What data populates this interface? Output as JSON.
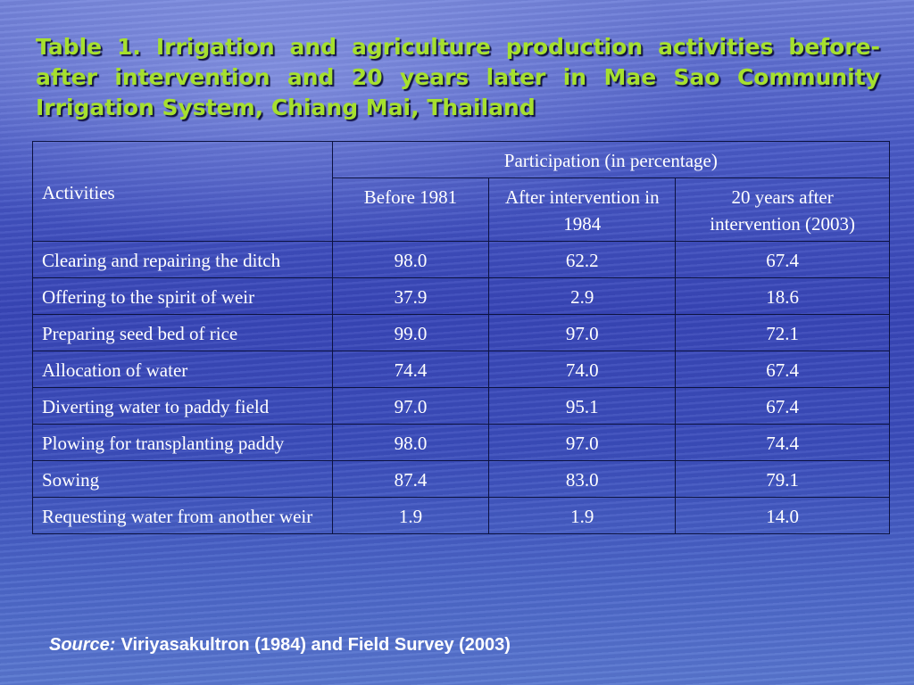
{
  "title": "Table 1. Irrigation and agriculture production activities before-after intervention and 20 years later in Mae Sao Community Irrigation System, Chiang Mai, Thailand",
  "table": {
    "header_activities": "Activities",
    "header_group": "Participation (in percentage)",
    "columns": [
      "Before 1981",
      "After intervention in 1984",
      "20 years after intervention (2003)"
    ],
    "rows": [
      {
        "activity": "Clearing and repairing the ditch",
        "before": "98.0",
        "after": "62.2",
        "twenty": "67.4"
      },
      {
        "activity": "Offering to the spirit of weir",
        "before": "37.9",
        "after": "2.9",
        "twenty": "18.6"
      },
      {
        "activity": "Preparing seed bed of rice",
        "before": "99.0",
        "after": "97.0",
        "twenty": "72.1"
      },
      {
        "activity": "Allocation of water",
        "before": "74.4",
        "after": "74.0",
        "twenty": "67.4"
      },
      {
        "activity": "Diverting water to paddy field",
        "before": "97.0",
        "after": "95.1",
        "twenty": "67.4"
      },
      {
        "activity": "Plowing for transplanting paddy",
        "before": "98.0",
        "after": "97.0",
        "twenty": "74.4"
      },
      {
        "activity": "Sowing",
        "before": "87.4",
        "after": "83.0",
        "twenty": "79.1"
      },
      {
        "activity": "Requesting water from another weir",
        "before": "1.9",
        "after": "1.9",
        "twenty": "14.0"
      }
    ]
  },
  "source": {
    "label": "Source:",
    "text": "Viriyasakultron (1984) and Field Survey (2003)"
  },
  "colors": {
    "title": "#a6e02e",
    "table_text": "#ffffff",
    "table_border": "#0c1240",
    "background": "#3947b8"
  }
}
